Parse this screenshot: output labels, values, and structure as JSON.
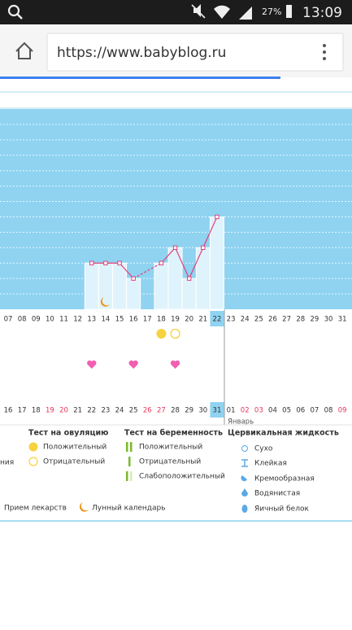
{
  "status_bar": {
    "battery": "27%",
    "time": "13:09"
  },
  "browser": {
    "url": "https://www.babyblog.ru"
  },
  "chart": {
    "days_top": [
      "07",
      "08",
      "09",
      "10",
      "11",
      "12",
      "13",
      "14",
      "15",
      "16",
      "17",
      "18",
      "19",
      "20",
      "21",
      "22",
      "23",
      "24",
      "25",
      "26",
      "27",
      "28",
      "29",
      "30",
      "31"
    ],
    "days_bottom": [
      "16",
      "17",
      "18",
      "19",
      "20",
      "21",
      "22",
      "23",
      "24",
      "25",
      "26",
      "27",
      "28",
      "29",
      "30",
      "31",
      "01",
      "02",
      "03",
      "04",
      "05",
      "06",
      "07",
      "08",
      "09"
    ],
    "weekend_bottom": [
      3,
      4,
      10,
      11,
      17,
      18,
      24
    ],
    "today_index": 15,
    "month_label": "Январь",
    "temperature": [
      null,
      null,
      null,
      null,
      null,
      null,
      3,
      3,
      3,
      2,
      null,
      3,
      4,
      2,
      4,
      6,
      null,
      null,
      null,
      null,
      null,
      null,
      null,
      null,
      null
    ],
    "grid_levels": 12,
    "ovulation_positive": [
      11
    ],
    "ovulation_negative": [
      12
    ],
    "hearts": [
      6,
      9,
      12
    ],
    "moon": [
      7
    ]
  },
  "legend": {
    "cut_text": "ния",
    "ovulation": {
      "title": "Тест на овуляцию",
      "items": [
        "Положительный",
        "Отрицательный"
      ]
    },
    "pregnancy": {
      "title": "Тест на беременность",
      "items": [
        "Положительный",
        "Отрицательный",
        "Слабоположительный"
      ]
    },
    "cervical": {
      "title": "Цервикальная жидкость",
      "items": [
        "Сухо",
        "Клейкая",
        "Кремообразная",
        "Водянистая",
        "Яичный белок"
      ]
    },
    "medication": "Прием лекарств",
    "lunar": "Лунный календарь"
  }
}
